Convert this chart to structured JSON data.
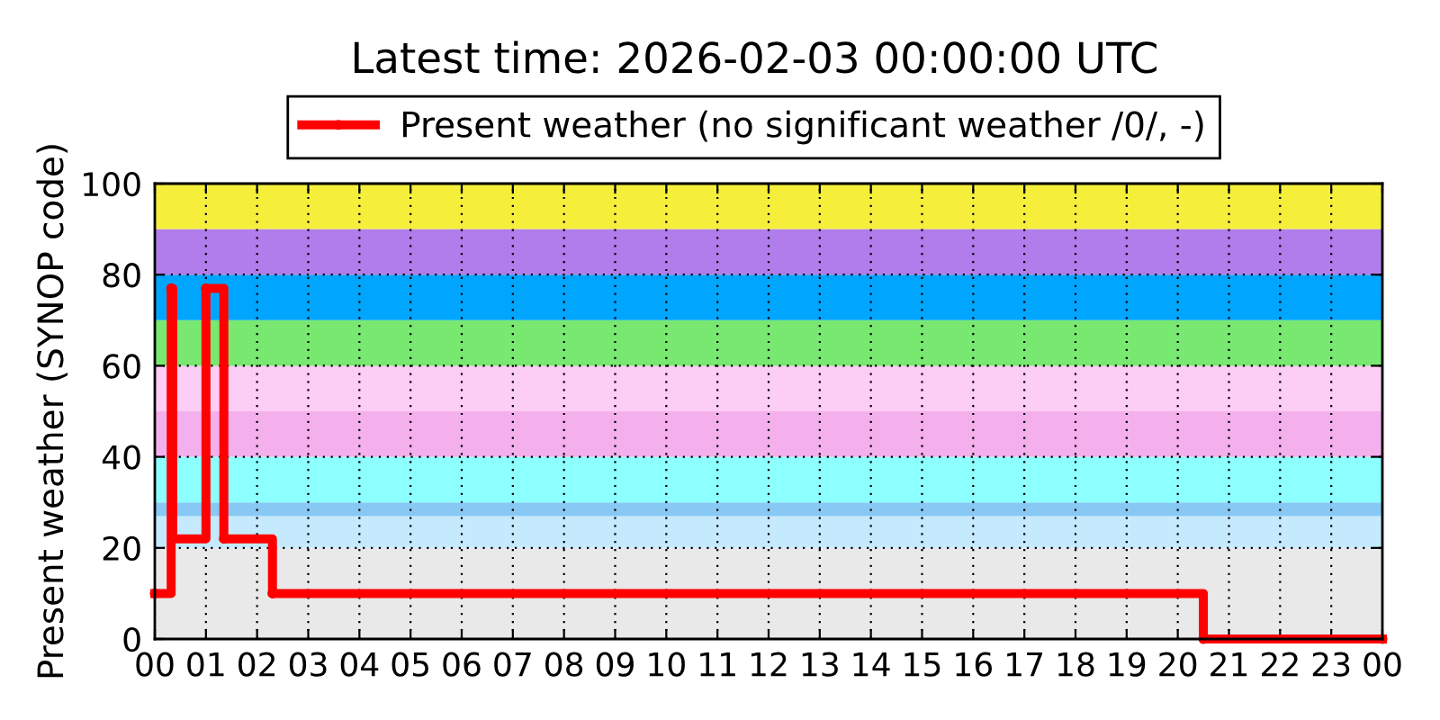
{
  "chart_data": {
    "type": "step",
    "title": "Latest time: 2026-02-03 00:00:00 UTC",
    "ylabel": "Present weather (SYNOP code)",
    "x": [
      0,
      0.32,
      0.35,
      1.0,
      1.35,
      2.3,
      20.5,
      24
    ],
    "series": [
      {
        "name": "Present weather (no significant weather /0/, -)",
        "color": "#ff0000",
        "values": [
          10,
          77,
          22,
          77,
          22,
          10,
          0,
          0
        ]
      }
    ],
    "xlim": [
      0,
      24
    ],
    "xticks": [
      {
        "value": 0,
        "label": "00"
      },
      {
        "value": 1,
        "label": "01"
      },
      {
        "value": 2,
        "label": "02"
      },
      {
        "value": 3,
        "label": "03"
      },
      {
        "value": 4,
        "label": "04"
      },
      {
        "value": 5,
        "label": "05"
      },
      {
        "value": 6,
        "label": "06"
      },
      {
        "value": 7,
        "label": "07"
      },
      {
        "value": 8,
        "label": "08"
      },
      {
        "value": 9,
        "label": "09"
      },
      {
        "value": 10,
        "label": "10"
      },
      {
        "value": 11,
        "label": "11"
      },
      {
        "value": 12,
        "label": "12"
      },
      {
        "value": 13,
        "label": "13"
      },
      {
        "value": 14,
        "label": "14"
      },
      {
        "value": 15,
        "label": "15"
      },
      {
        "value": 16,
        "label": "16"
      },
      {
        "value": 17,
        "label": "17"
      },
      {
        "value": 18,
        "label": "18"
      },
      {
        "value": 19,
        "label": "19"
      },
      {
        "value": 20,
        "label": "20"
      },
      {
        "value": 21,
        "label": "21"
      },
      {
        "value": 22,
        "label": "22"
      },
      {
        "value": 23,
        "label": "23"
      },
      {
        "value": 24,
        "label": "00"
      }
    ],
    "ylim": [
      0,
      100
    ],
    "yticks": [
      0,
      20,
      40,
      60,
      80,
      100
    ],
    "bands": [
      {
        "axis": "y",
        "from": 0,
        "to": 20,
        "color": "#e9e9e9"
      },
      {
        "axis": "y",
        "from": 20,
        "to": 27,
        "color": "#c6eafd"
      },
      {
        "axis": "y",
        "from": 27,
        "to": 30,
        "color": "#88c8f5"
      },
      {
        "axis": "y",
        "from": 30,
        "to": 40,
        "color": "#8cfffe"
      },
      {
        "axis": "y",
        "from": 40,
        "to": 50,
        "color": "#f4b0ec"
      },
      {
        "axis": "y",
        "from": 50,
        "to": 60,
        "color": "#fccdf5"
      },
      {
        "axis": "y",
        "from": 60,
        "to": 70,
        "color": "#78e870"
      },
      {
        "axis": "y",
        "from": 70,
        "to": 80,
        "color": "#00a6fe"
      },
      {
        "axis": "y",
        "from": 80,
        "to": 90,
        "color": "#b07dea"
      },
      {
        "axis": "y",
        "from": 90,
        "to": 100,
        "color": "#f5ef3c"
      }
    ],
    "grid": true,
    "legend": "top",
    "marker": "circle",
    "line_style": "solid"
  }
}
